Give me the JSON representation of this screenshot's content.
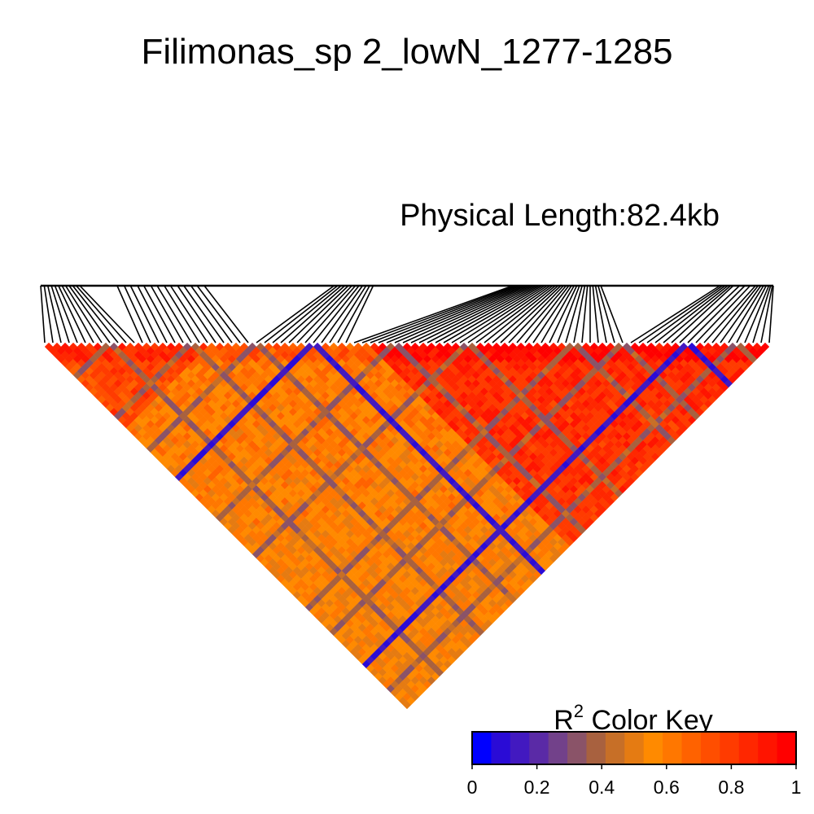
{
  "chart_data": {
    "type": "heatmap",
    "title": "Filimonas_sp 2_lowN_1277-1285",
    "annotation": "Physical Length:82.4kb",
    "n_markers": 90,
    "marker_positions": [
      0.0,
      0.4,
      0.8,
      1.2,
      1.6,
      2.0,
      2.4,
      2.8,
      3.2,
      3.6,
      4.0,
      4.4,
      8.6,
      9.4,
      10.1,
      10.9,
      11.6,
      12.4,
      13.1,
      13.9,
      14.6,
      15.4,
      16.1,
      16.9,
      17.6,
      18.4,
      33.0,
      33.4,
      33.8,
      34.2,
      34.6,
      35.0,
      35.4,
      35.8,
      36.2,
      36.6,
      37.0,
      37.4,
      53.1,
      53.4,
      53.7,
      54.0,
      54.3,
      54.6,
      54.9,
      55.2,
      55.5,
      55.8,
      56.1,
      56.4,
      56.7,
      57.0,
      57.3,
      57.6,
      57.9,
      58.2,
      58.5,
      58.8,
      59.1,
      59.4,
      59.7,
      60.0,
      60.3,
      60.6,
      60.9,
      61.2,
      61.5,
      61.8,
      62.1,
      62.4,
      62.7,
      63.0,
      76.4,
      76.7,
      77.0,
      77.3,
      77.6,
      77.9,
      78.6,
      79.2,
      79.8,
      80.4,
      80.7,
      81.0,
      81.3,
      81.6,
      81.9,
      82.1,
      82.3,
      82.4
    ],
    "blue_markers": [
      33,
      79
    ],
    "gray_markers": [
      8,
      18,
      26,
      43,
      52,
      65,
      71,
      85
    ],
    "background_level": [
      {
        "from": 0,
        "to": 60,
        "r2": 0.62
      },
      {
        "from": 0,
        "to": 20,
        "r2": 0.78
      },
      {
        "from": 40,
        "to": 90,
        "r2": 0.87
      }
    ],
    "color_key": {
      "title": "R",
      "title_sup": "2",
      "title_suffix": " Color Key",
      "ticks": [
        "0",
        "0.2",
        "0.4",
        "0.6",
        "0.8",
        "1"
      ],
      "colors": [
        "#0000ff",
        "#2a0bd6",
        "#4219c0",
        "#5a2aa6",
        "#72418a",
        "#8a5368",
        "#a8613f",
        "#c76f27",
        "#e57b12",
        "#ff8a00",
        "#ff7700",
        "#ff6200",
        "#ff4e00",
        "#ff3b00",
        "#ff2700",
        "#ff1400",
        "#ff0000"
      ]
    }
  }
}
